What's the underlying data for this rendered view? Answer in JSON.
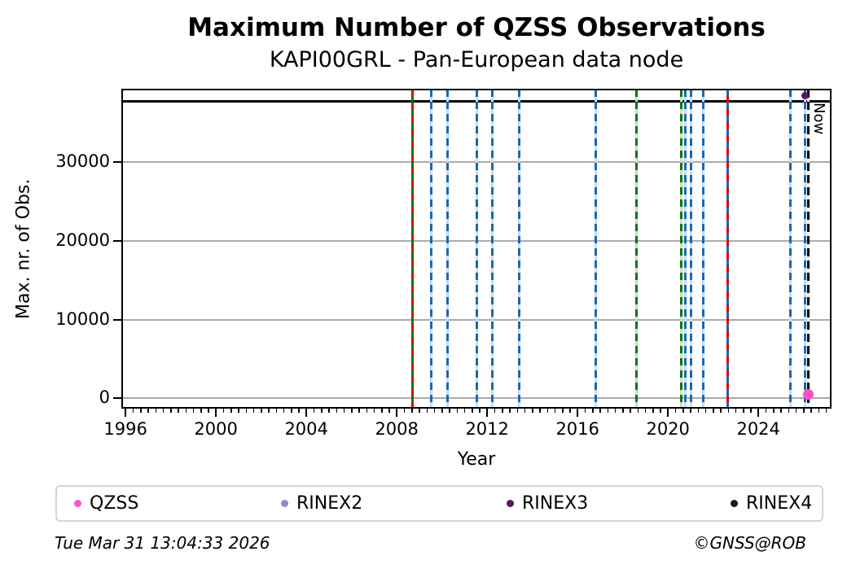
{
  "footer": {
    "timestamp": "Tue Mar 31 13:04:33 2026",
    "copyright": "©GNSS@ROB"
  },
  "chart_data": {
    "type": "scatter",
    "title": "Maximum Number of QZSS Observations",
    "subtitle": "KAPI00GRL - Pan-European data node",
    "xlabel": "Year",
    "ylabel": "Max. nr. of Obs.",
    "xlim": [
      1995.85,
      2027.2
    ],
    "ylim": [
      -1200,
      39200
    ],
    "xticks": [
      1996,
      2000,
      2004,
      2008,
      2012,
      2016,
      2020,
      2024
    ],
    "yticks": [
      0,
      10000,
      20000,
      30000
    ],
    "x_minor_step_years": 0.3333,
    "grid": "horizontal-only",
    "grid_color": "#ababab",
    "line_colors": {
      "blue": "#1868b4",
      "green": "#077807",
      "red": "#e00000",
      "black": "#000000"
    },
    "reference_line_y": 37700,
    "now_marker": {
      "x": 2026.2,
      "label": "Now",
      "color": "black",
      "style": "dashed"
    },
    "event_lines": [
      {
        "x": 2008.71,
        "dash": "red",
        "base": "green"
      },
      {
        "x": 2009.51,
        "dash": "blue"
      },
      {
        "x": 2010.26,
        "dash": "blue"
      },
      {
        "x": 2011.56,
        "dash": "blue"
      },
      {
        "x": 2012.21,
        "dash": "blue"
      },
      {
        "x": 2013.4,
        "dash": "blue"
      },
      {
        "x": 2016.79,
        "dash": "blue"
      },
      {
        "x": 2018.59,
        "dash": "green"
      },
      {
        "x": 2020.57,
        "dash": "green"
      },
      {
        "x": 2020.75,
        "dash": "blue"
      },
      {
        "x": 2021.01,
        "dash": "blue"
      },
      {
        "x": 2021.55,
        "dash": "blue"
      },
      {
        "x": 2022.63,
        "dash": "blue",
        "base": "red"
      },
      {
        "x": 2025.4,
        "dash": "blue"
      },
      {
        "x": 2026.05,
        "dash": "blue"
      }
    ],
    "series": [
      {
        "name": "QZSS",
        "color": "#ff50c8",
        "points": [
          {
            "x": 2026.2,
            "y": 500
          }
        ]
      },
      {
        "name": "RINEX2",
        "color": "#8d8bc7",
        "points": []
      },
      {
        "name": "RINEX3",
        "color": "#5c1463",
        "points": [
          {
            "x": 2026.05,
            "y": 38400
          }
        ]
      },
      {
        "name": "RINEX4",
        "color": "#241328",
        "points": []
      }
    ],
    "legend": {
      "position": "bottom",
      "entries": [
        "QZSS",
        "RINEX2",
        "RINEX3",
        "RINEX4"
      ]
    }
  }
}
